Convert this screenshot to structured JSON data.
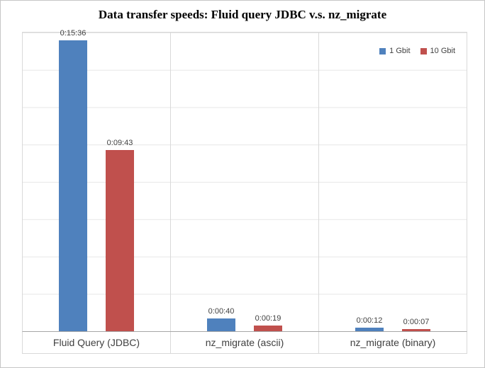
{
  "title": "Data transfer speeds: Fluid query JDBC v.s. nz_migrate",
  "chart_data": {
    "type": "bar",
    "title": "Data transfer speeds: Fluid query JDBC v.s. nz_migrate",
    "categories": [
      "Fluid Query (JDBC)",
      "nz_migrate (ascii)",
      "nz_migrate (binary)"
    ],
    "series": [
      {
        "name": "1 Gbit",
        "color": "#4F81BD",
        "values_seconds": [
          936,
          40,
          12
        ],
        "labels": [
          "0:15:36",
          "0:00:40",
          "0:00:12"
        ]
      },
      {
        "name": "10 Gbit",
        "color": "#C0504D",
        "values_seconds": [
          583,
          19,
          7
        ],
        "labels": [
          "0:09:43",
          "0:00:19",
          "0:00:07"
        ]
      }
    ],
    "ylim": [
      0,
      960
    ],
    "grid": true,
    "gridline_interval_seconds": 120,
    "legend_position": "top-right",
    "xlabel": "",
    "ylabel": ""
  }
}
